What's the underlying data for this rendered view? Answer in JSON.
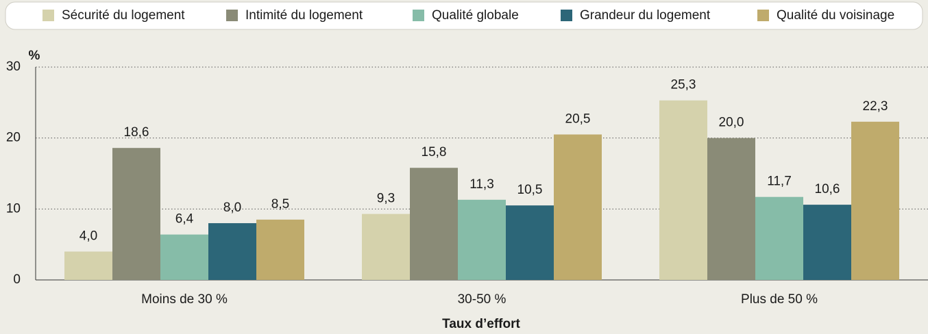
{
  "chart_data": {
    "type": "bar",
    "y_label": "%",
    "x_label": "Taux d’effort",
    "categories": [
      "Moins de 30 %",
      "30-50 %",
      "Plus de 50 %"
    ],
    "series": [
      {
        "name": "Sécurité du logement",
        "color": "#d5d2ac",
        "values": [
          4.0,
          9.3,
          25.3
        ],
        "value_labels": [
          "4,0",
          "9,3",
          "25,3"
        ]
      },
      {
        "name": "Intimité du logement",
        "color": "#8a8b77",
        "values": [
          18.6,
          15.8,
          20.0
        ],
        "value_labels": [
          "18,6",
          "15,8",
          "20,0"
        ]
      },
      {
        "name": "Qualité globale",
        "color": "#86bca8",
        "values": [
          6.4,
          11.3,
          11.7
        ],
        "value_labels": [
          "6,4",
          "11,3",
          "11,7"
        ]
      },
      {
        "name": "Grandeur du logement",
        "color": "#2c6678",
        "values": [
          8.0,
          10.5,
          10.6
        ],
        "value_labels": [
          "8,0",
          "10,5",
          "10,6"
        ]
      },
      {
        "name": "Qualité du voisinage",
        "color": "#bfab6c",
        "values": [
          8.5,
          20.5,
          22.3
        ],
        "value_labels": [
          "8,5",
          "20,5",
          "22,3"
        ]
      }
    ],
    "ylim": [
      0,
      30
    ],
    "yticks": [
      0,
      10,
      20,
      30
    ],
    "grid": true,
    "legend": "top"
  }
}
